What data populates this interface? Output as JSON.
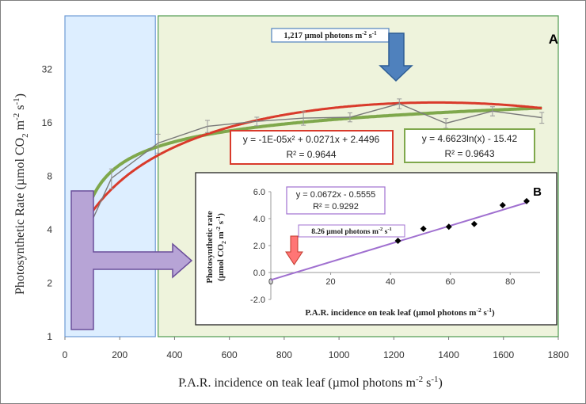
{
  "chart_data": [
    {
      "panel": "A",
      "type": "line",
      "panel_label": "A",
      "xlabel": "P.A.R. incidence on teak leaf (µmol photons m",
      "xlabel_sup": "-2",
      "xlabel_tail": " s",
      "xlabel_sup2": "-1",
      "xlabel_end": ")",
      "ylabel": "Photosynthetic Rate (µmol CO",
      "ylabel_sub": "2",
      "ylabel_mid": " m",
      "ylabel_sup": "-2",
      "ylabel_tail": " s",
      "ylabel_sup2": "-1",
      "ylabel_end": ")",
      "xlim": [
        0,
        1800
      ],
      "ylim": [
        1,
        64
      ],
      "y_scale": "log2",
      "x_ticks": [
        "0",
        "200",
        "400",
        "600",
        "800",
        "1000",
        "1200",
        "1400",
        "1600",
        "1800"
      ],
      "x_tick_values": [
        0,
        200,
        400,
        600,
        800,
        1000,
        1200,
        1400,
        1600,
        1800
      ],
      "y_ticks": [
        "1",
        "2",
        "4",
        "8",
        "16",
        "32"
      ],
      "y_tick_values": [
        1,
        2,
        4,
        8,
        16,
        32
      ],
      "grid": false,
      "regions": [
        {
          "x_range": [
            0,
            330
          ],
          "color": "#ddeeff",
          "border": "#6f9bd6"
        },
        {
          "x_range": [
            340,
            1800
          ],
          "color": "#eef3dc",
          "border": "#4f9a4f"
        }
      ],
      "series": [
        {
          "type": "line_with_errorbars",
          "color": "#7a7a7a",
          "x": [
            45,
            70,
            170,
            340,
            520,
            700,
            870,
            1040,
            1220,
            1390,
            1560,
            1740
          ],
          "y": [
            2.2,
            3.6,
            7.8,
            12.3,
            15.3,
            16.3,
            17.0,
            17.2,
            20.5,
            15.9,
            18.6,
            17.1
          ],
          "err": [
            0.4,
            0.6,
            1.0,
            1.5,
            1.2,
            0.9,
            1.5,
            1.0,
            1.3,
            1.0,
            1.1,
            1.2
          ]
        },
        {
          "type": "fit_polynomial",
          "color": "#d93a2b",
          "equation": "y = -1E-05x² + 0.0271x + 2.4496",
          "r2": "R² = 0.9644",
          "x_range": [
            45,
            1740
          ]
        },
        {
          "type": "fit_log",
          "color": "#7fa84c",
          "equation": "y = 4.6623ln(x) - 15.42",
          "r2": "R² = 0.9643",
          "x_range": [
            45,
            1740
          ]
        }
      ],
      "annotation": {
        "text": "1,217 µmol photons m",
        "sup": "-2",
        "tail": " s",
        "sup2": "-1",
        "x": 1217
      }
    },
    {
      "panel": "B",
      "type": "scatter",
      "panel_label": "B",
      "ylabel_line1": "Photosynthetic rate",
      "ylabel_line2": "(µmol CO",
      "ylabel_line2_sub": "2",
      "ylabel_line2_mid": " m",
      "ylabel_line2_sup": "-2",
      "ylabel_line2_tail": " s",
      "ylabel_line2_sup2": "-1",
      "ylabel_line2_end": ")",
      "xlabel": "P.A.R. incidence on teak leaf (µmol photons m",
      "xlabel_sup": "-2",
      "xlabel_tail": " s",
      "xlabel_sup2": "-1",
      "xlabel_end": ")",
      "xlim": [
        0,
        90
      ],
      "ylim": [
        -2,
        6
      ],
      "x_ticks": [
        "0",
        "20",
        "40",
        "60",
        "80"
      ],
      "x_tick_values": [
        0,
        20,
        40,
        60,
        80
      ],
      "y_ticks": [
        "-2.0",
        "0.0",
        "2.0",
        "4.0",
        "6.0"
      ],
      "y_tick_values": [
        -2,
        0,
        2,
        4,
        6
      ],
      "points": {
        "x": [
          42.5,
          51,
          59.5,
          68,
          77.5,
          85.5
        ],
        "y": [
          2.35,
          3.25,
          3.4,
          3.6,
          5.0,
          5.3
        ],
        "color": "#000000"
      },
      "fit": {
        "type": "linear",
        "color": "#a070d0",
        "equation": "y = 0.0672x - 0.5555",
        "r2": "R² = 0.9292",
        "slope": 0.0672,
        "intercept": -0.5555
      },
      "annotation": {
        "text": "8.26 µmol photons m",
        "sup": "-2",
        "tail": " s",
        "sup2": "-1",
        "x": 8.26
      }
    }
  ],
  "colors": {
    "frame": "#7f7f7f",
    "arrow_blue": "#4f81bd",
    "arrow_red": "#ff7575",
    "arrow_purple": "#b7a4d6"
  }
}
